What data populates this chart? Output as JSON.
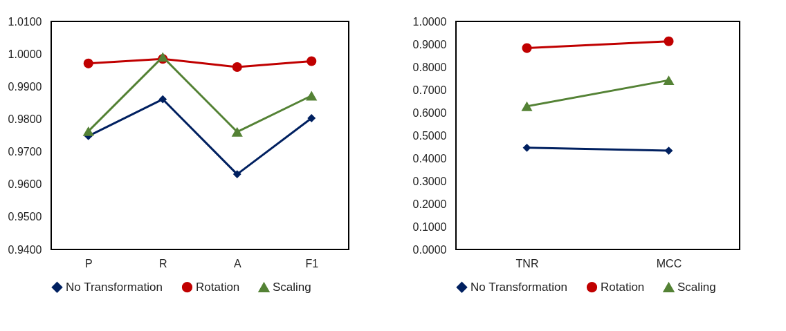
{
  "chart_data": [
    {
      "type": "line",
      "categories": [
        "P",
        "R",
        "A",
        "F1"
      ],
      "ylim": [
        0.94,
        1.01
      ],
      "yticks": [
        {
          "value": 0.94,
          "label": "0.9400"
        },
        {
          "value": 0.95,
          "label": "0.9500"
        },
        {
          "value": 0.96,
          "label": "0.9600"
        },
        {
          "value": 0.97,
          "label": "0.9700"
        },
        {
          "value": 0.98,
          "label": "0.9800"
        },
        {
          "value": 0.99,
          "label": "0.9900"
        },
        {
          "value": 1.0,
          "label": "1.0000"
        },
        {
          "value": 1.01,
          "label": "1.0100"
        }
      ],
      "grid": false,
      "legend": "bottom",
      "series": [
        {
          "name": "No Transformation",
          "color": "#002060",
          "marker": "diamond",
          "values": [
            0.9748,
            0.9861,
            0.9631,
            0.9803
          ]
        },
        {
          "name": "Rotation",
          "color": "#c00000",
          "marker": "circle",
          "values": [
            0.9971,
            0.9985,
            0.996,
            0.9978
          ]
        },
        {
          "name": "Scaling",
          "color": "#548235",
          "marker": "triangle",
          "values": [
            0.9763,
            0.9991,
            0.9761,
            0.9872
          ]
        }
      ]
    },
    {
      "type": "line",
      "categories": [
        "TNR",
        "MCC"
      ],
      "ylim": [
        0,
        1
      ],
      "yticks": [
        {
          "value": 0,
          "label": "0.0000"
        },
        {
          "value": 0.1,
          "label": "0.1000"
        },
        {
          "value": 0.2,
          "label": "0.2000"
        },
        {
          "value": 0.3,
          "label": "0.3000"
        },
        {
          "value": 0.4,
          "label": "0.4000"
        },
        {
          "value": 0.5,
          "label": "0.5000"
        },
        {
          "value": 0.6,
          "label": "0.6000"
        },
        {
          "value": 0.7,
          "label": "0.7000"
        },
        {
          "value": 0.8,
          "label": "0.8000"
        },
        {
          "value": 0.9,
          "label": "0.9000"
        },
        {
          "value": 1,
          "label": "1.0000"
        }
      ],
      "grid": false,
      "legend": "bottom",
      "series": [
        {
          "name": "No Transformation",
          "color": "#002060",
          "marker": "diamond",
          "values": [
            0.446,
            0.433
          ]
        },
        {
          "name": "Rotation",
          "color": "#c00000",
          "marker": "circle",
          "values": [
            0.883,
            0.913
          ]
        },
        {
          "name": "Scaling",
          "color": "#548235",
          "marker": "triangle",
          "values": [
            0.628,
            0.742
          ]
        }
      ]
    }
  ]
}
